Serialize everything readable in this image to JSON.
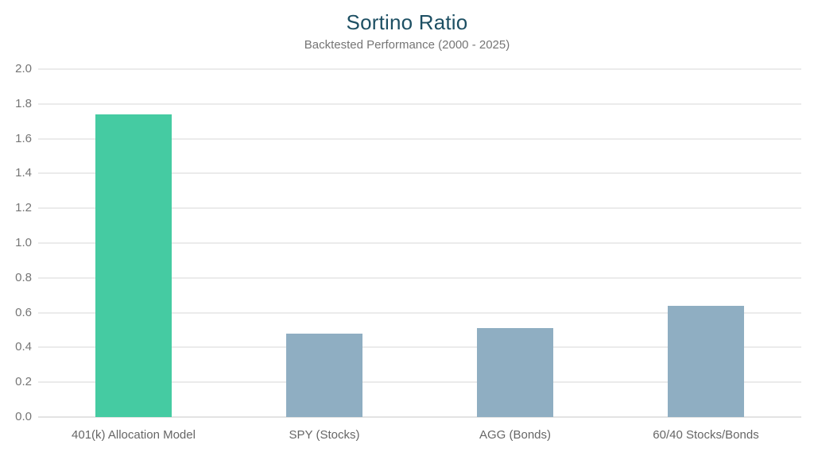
{
  "chart_data": {
    "type": "bar",
    "title": "Sortino Ratio",
    "subtitle": "Backtested Performance (2000 - 2025)",
    "categories": [
      "401(k) Allocation Model",
      "SPY (Stocks)",
      "AGG (Bonds)",
      "60/40 Stocks/Bonds"
    ],
    "values": [
      1.74,
      0.48,
      0.51,
      0.64
    ],
    "bar_colors": [
      "#45cba2",
      "#8faec2",
      "#8faec2",
      "#8faec2"
    ],
    "ylim": [
      0.0,
      2.0
    ],
    "ytick_step": 0.2,
    "ytick_labels": [
      "0.0",
      "0.2",
      "0.4",
      "0.6",
      "0.8",
      "1.0",
      "1.2",
      "1.4",
      "1.6",
      "1.8",
      "2.0"
    ],
    "xlabel": "",
    "ylabel": "",
    "grid": "horizontal",
    "legend": "none",
    "colors": {
      "highlight_green": "#45cba2",
      "benchmark_blue": "#8faec2",
      "title_text": "#1d4f63",
      "subtitle_text": "#757575",
      "axis_label_text": "#666666",
      "gridline": "#ebebeb",
      "background": "#ffffff"
    }
  }
}
